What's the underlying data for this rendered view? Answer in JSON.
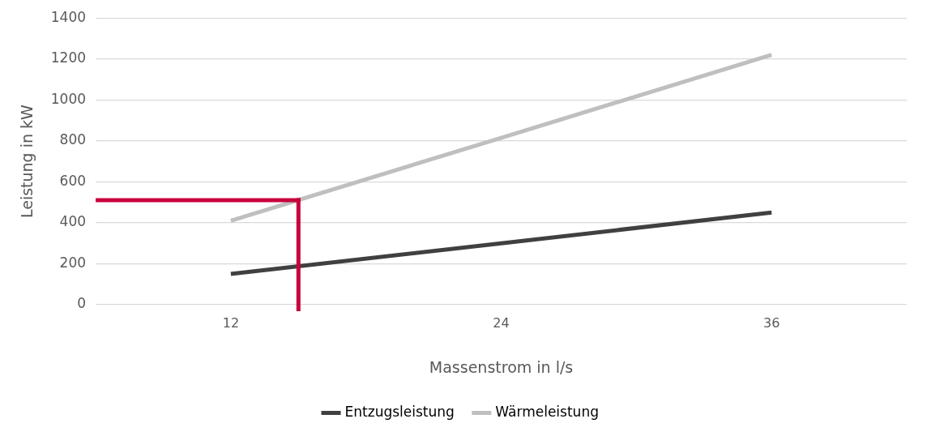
{
  "chart_data": {
    "type": "line",
    "xlabel": "Massenstrom in l/s",
    "ylabel": "Leistung in kW",
    "x": [
      12,
      24,
      36
    ],
    "xlim": [
      6,
      42
    ],
    "xticks": [
      12,
      24,
      36
    ],
    "ylim": [
      0,
      1400
    ],
    "yticks": [
      0,
      200,
      400,
      600,
      800,
      1000,
      1200,
      1400
    ],
    "grid": "y",
    "legend": "bottom",
    "marker": "none",
    "line_style": "solid",
    "series": [
      {
        "name": "Entzugsleistung",
        "color": "#404040",
        "values": [
          150,
          300,
          450
        ]
      },
      {
        "name": "Wärmeleistung",
        "color": "#bfbfbf",
        "values": [
          410,
          815,
          1220
        ]
      }
    ],
    "ref_lines": [
      {
        "axis": "y",
        "value": 510,
        "color": "#c8003c"
      },
      {
        "axis": "x",
        "value": 15,
        "color": "#c8003c"
      }
    ]
  }
}
